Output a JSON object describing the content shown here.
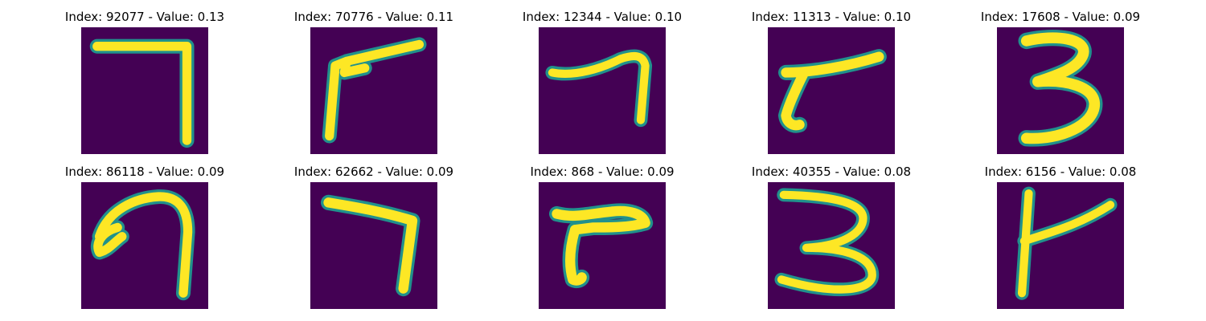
{
  "figure": {
    "colormap": {
      "background": "#440154",
      "mid": "#21918c",
      "high": "#fde725"
    },
    "panels": [
      {
        "title": "Index: 92077 - Value: 0.13",
        "digit": "7"
      },
      {
        "title": "Index: 70776 - Value: 0.11",
        "digit": "7"
      },
      {
        "title": "Index: 12344 - Value: 0.10",
        "digit": "7"
      },
      {
        "title": "Index: 11313 - Value: 0.10",
        "digit": "7"
      },
      {
        "title": "Index: 17608 - Value: 0.09",
        "digit": "3"
      },
      {
        "title": "Index: 86118 - Value: 0.09",
        "digit": "7"
      },
      {
        "title": "Index: 62662 - Value: 0.09",
        "digit": "7"
      },
      {
        "title": "Index: 868 - Value: 0.09",
        "digit": "7"
      },
      {
        "title": "Index: 40355 - Value: 0.08",
        "digit": "3"
      },
      {
        "title": "Index: 6156 - Value: 0.08",
        "digit": "7"
      }
    ]
  }
}
